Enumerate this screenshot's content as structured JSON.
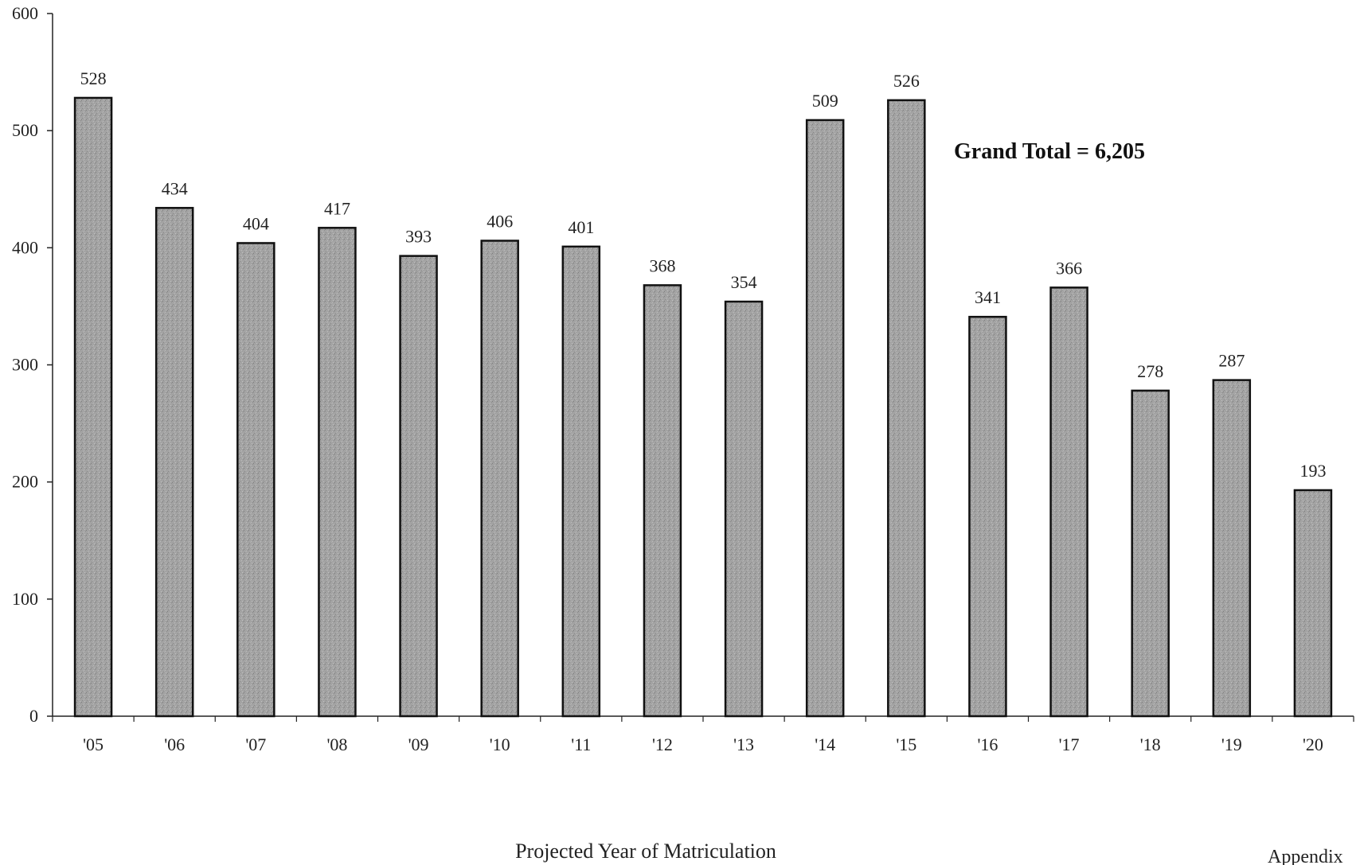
{
  "chart_data": {
    "type": "bar",
    "categories": [
      "'05",
      "'06",
      "'07",
      "'08",
      "'09",
      "'10",
      "'11",
      "'12",
      "'13",
      "'14",
      "'15",
      "'16",
      "'17",
      "'18",
      "'19",
      "'20"
    ],
    "values": [
      528,
      434,
      404,
      417,
      393,
      406,
      401,
      368,
      354,
      509,
      526,
      341,
      366,
      278,
      287,
      193
    ],
    "data_labels": [
      "528",
      "434",
      "404",
      "417",
      "393",
      "406",
      "401",
      "368",
      "354",
      "509",
      "526",
      "341",
      "366",
      "278",
      "287",
      "193"
    ],
    "xlabel": "Projected Year of Matriculation",
    "ylabel": "",
    "ylim": [
      0,
      600
    ],
    "yticks": [
      0,
      100,
      200,
      300,
      400,
      500,
      600
    ],
    "ytick_labels": [
      "0",
      "100",
      "200",
      "300",
      "400",
      "500",
      "600"
    ],
    "annotation": "Grand Total = 6,205",
    "grid": false,
    "legend": "none",
    "bar_color": "#9a9a9a",
    "bar_edge_color": "#111111"
  },
  "footer": {
    "note": "Appendix"
  }
}
